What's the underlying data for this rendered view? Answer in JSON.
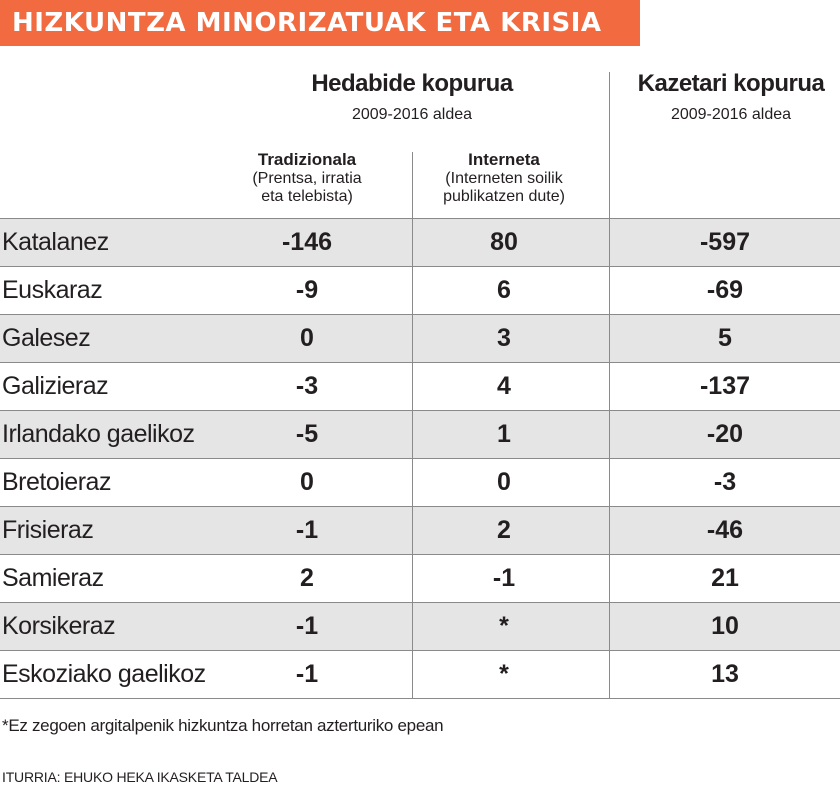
{
  "title": "HIZKUNTZA MINORIZATUAK ETA KRISIA",
  "group_media": {
    "title": "Hedabide kopurua",
    "subtitle": "2009-2016 aldea"
  },
  "group_journalists": {
    "title": "Kazetari kopurua",
    "subtitle": "2009-2016 aldea"
  },
  "col_traditional": {
    "title": "Tradizionala",
    "sub_line1": "(Prentsa, irratia",
    "sub_line2": "eta telebista)"
  },
  "col_internet": {
    "title": "Interneta",
    "sub_line1": "(Interneten soilik",
    "sub_line2": "publikatzen dute)"
  },
  "rows": [
    {
      "language": "Katalanez",
      "traditional": "-146",
      "internet": "80",
      "journalists": "-597"
    },
    {
      "language": "Euskaraz",
      "traditional": "-9",
      "internet": "6",
      "journalists": "-69"
    },
    {
      "language": "Galesez",
      "traditional": "0",
      "internet": "3",
      "journalists": "5"
    },
    {
      "language": "Galizieraz",
      "traditional": "-3",
      "internet": "4",
      "journalists": "-137"
    },
    {
      "language": "Irlandako gaelikoz",
      "traditional": "-5",
      "internet": "1",
      "journalists": "-20"
    },
    {
      "language": "Bretoieraz",
      "traditional": "0",
      "internet": "0",
      "journalists": "-3"
    },
    {
      "language": "Frisieraz",
      "traditional": "-1",
      "internet": "2",
      "journalists": "-46"
    },
    {
      "language": "Samieraz",
      "traditional": "2",
      "internet": "-1",
      "journalists": "21"
    },
    {
      "language": "Korsikeraz",
      "traditional": "-1",
      "internet": "*",
      "journalists": "10"
    },
    {
      "language": "Eskoziako gaelikoz",
      "traditional": "-1",
      "internet": "*",
      "journalists": "13"
    }
  ],
  "footnote": "*Ez zegoen argitalpenik hizkuntza horretan azterturiko epean",
  "source": "ITURRIA: EHUKO HEKA IKASKETA TALDEA"
}
